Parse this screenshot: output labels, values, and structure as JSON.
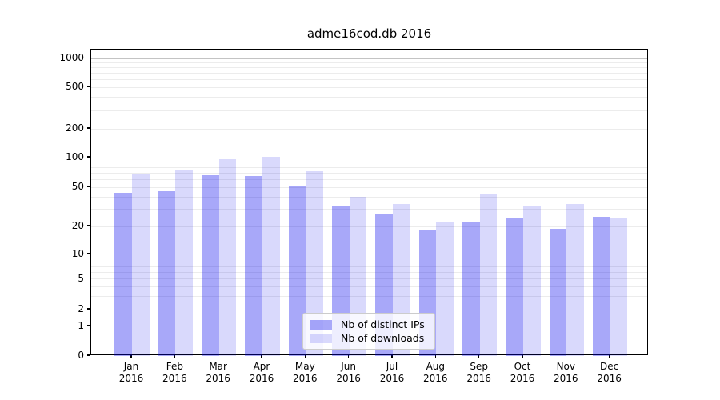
{
  "title": "adme16cod.db 2016",
  "chart_data": {
    "type": "bar",
    "title": "adme16cod.db 2016",
    "categories": [
      "Jan",
      "Feb",
      "Mar",
      "Apr",
      "May",
      "Jun",
      "Jul",
      "Aug",
      "Sep",
      "Oct",
      "Nov",
      "Dec"
    ],
    "category_year": "2016",
    "series": [
      {
        "name": "Nb of distinct IPs",
        "color": "#0000ee",
        "alpha": 0.34,
        "values": [
          44,
          46,
          67,
          65,
          52,
          32,
          27,
          18,
          22,
          24,
          19,
          25
        ]
      },
      {
        "name": "Nb of downloads",
        "color": "#0000ee",
        "alpha": 0.15,
        "values": [
          68,
          74,
          96,
          102,
          73,
          40,
          34,
          22,
          43,
          32,
          34,
          24
        ]
      }
    ],
    "xlabel": "",
    "ylabel": "",
    "yscale": "log-with-zero",
    "yticks": [
      0,
      1,
      2,
      5,
      10,
      20,
      50,
      100,
      200,
      500,
      1000
    ],
    "ylim": [
      0,
      1050
    ],
    "grid": true,
    "grid_minor": true,
    "legend_position": "lower center",
    "colors": {
      "grid_major": "#c3c3c3",
      "grid_minor": "#ececec",
      "axis": "#000000"
    }
  }
}
